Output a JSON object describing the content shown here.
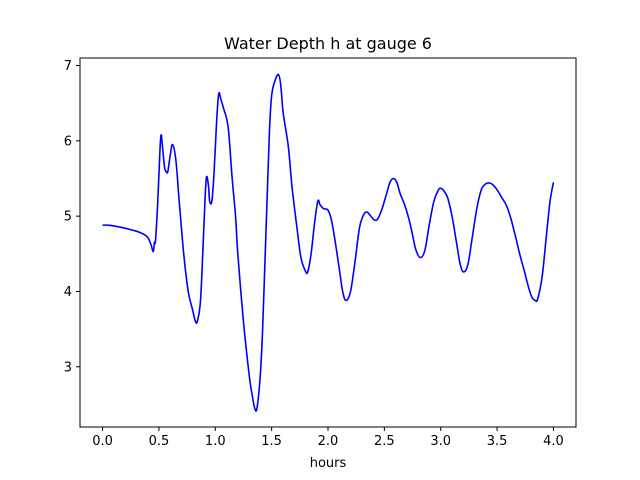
{
  "chart_data": {
    "type": "line",
    "title": "Water Depth h at gauge 6",
    "xlabel": "hours",
    "ylabel": "",
    "xlim": [
      -0.2,
      4.2
    ],
    "ylim": [
      2.2,
      7.1
    ],
    "xticks": [
      0.0,
      0.5,
      1.0,
      1.5,
      2.0,
      2.5,
      3.0,
      3.5,
      4.0
    ],
    "xtick_labels": [
      "0.0",
      "0.5",
      "1.0",
      "1.5",
      "2.0",
      "2.5",
      "3.0",
      "3.5",
      "4.0"
    ],
    "yticks": [
      3,
      4,
      5,
      6,
      7
    ],
    "ytick_labels": [
      "3",
      "4",
      "5",
      "6",
      "7"
    ],
    "grid": false,
    "legend": "none",
    "series": [
      {
        "color": "#0000ff",
        "x": [
          0.0,
          0.05,
          0.1,
          0.2,
          0.3,
          0.35,
          0.4,
          0.43,
          0.45,
          0.46,
          0.47,
          0.49,
          0.51,
          0.52,
          0.53,
          0.55,
          0.57,
          0.58,
          0.6,
          0.62,
          0.65,
          0.68,
          0.72,
          0.76,
          0.8,
          0.82,
          0.84,
          0.87,
          0.9,
          0.92,
          0.94,
          0.95,
          0.97,
          0.99,
          1.01,
          1.03,
          1.05,
          1.08,
          1.1,
          1.12,
          1.15,
          1.18,
          1.2,
          1.25,
          1.3,
          1.33,
          1.35,
          1.37,
          1.4,
          1.42,
          1.45,
          1.48,
          1.5,
          1.53,
          1.56,
          1.58,
          1.6,
          1.62,
          1.65,
          1.68,
          1.72,
          1.76,
          1.8,
          1.82,
          1.85,
          1.88,
          1.91,
          1.93,
          1.96,
          2.0,
          2.03,
          2.06,
          2.1,
          2.13,
          2.16,
          2.2,
          2.24,
          2.28,
          2.32,
          2.35,
          2.38,
          2.41,
          2.44,
          2.48,
          2.52,
          2.55,
          2.58,
          2.61,
          2.64,
          2.68,
          2.72,
          2.75,
          2.78,
          2.82,
          2.86,
          2.9,
          2.94,
          2.98,
          3.0,
          3.02,
          3.06,
          3.1,
          3.14,
          3.17,
          3.2,
          3.24,
          3.28,
          3.32,
          3.36,
          3.4,
          3.43,
          3.46,
          3.5,
          3.54,
          3.58,
          3.62,
          3.66,
          3.7,
          3.74,
          3.78,
          3.81,
          3.84,
          3.86,
          3.9,
          3.94,
          3.97,
          4.0
        ],
        "y": [
          4.88,
          4.88,
          4.87,
          4.84,
          4.8,
          4.77,
          4.72,
          4.62,
          4.53,
          4.65,
          4.68,
          5.2,
          5.9,
          6.08,
          5.95,
          5.65,
          5.58,
          5.6,
          5.8,
          5.95,
          5.75,
          5.2,
          4.5,
          4.0,
          3.75,
          3.62,
          3.6,
          3.9,
          4.9,
          5.5,
          5.4,
          5.2,
          5.2,
          5.6,
          6.2,
          6.62,
          6.55,
          6.4,
          6.3,
          6.1,
          5.5,
          5.0,
          4.5,
          3.6,
          2.9,
          2.6,
          2.45,
          2.45,
          2.9,
          3.5,
          4.8,
          6.1,
          6.6,
          6.8,
          6.88,
          6.75,
          6.4,
          6.2,
          5.9,
          5.4,
          4.9,
          4.45,
          4.27,
          4.26,
          4.5,
          4.9,
          5.2,
          5.15,
          5.1,
          5.08,
          4.95,
          4.7,
          4.3,
          4.0,
          3.88,
          4.0,
          4.4,
          4.85,
          5.03,
          5.05,
          5.0,
          4.95,
          4.96,
          5.1,
          5.3,
          5.45,
          5.5,
          5.45,
          5.3,
          5.15,
          4.95,
          4.75,
          4.55,
          4.45,
          4.55,
          4.9,
          5.2,
          5.35,
          5.37,
          5.35,
          5.25,
          5.0,
          4.65,
          4.38,
          4.26,
          4.35,
          4.72,
          5.1,
          5.35,
          5.43,
          5.44,
          5.42,
          5.35,
          5.25,
          5.15,
          4.98,
          4.75,
          4.5,
          4.28,
          4.05,
          3.92,
          3.88,
          3.9,
          4.2,
          4.78,
          5.2,
          5.45
        ]
      }
    ]
  }
}
